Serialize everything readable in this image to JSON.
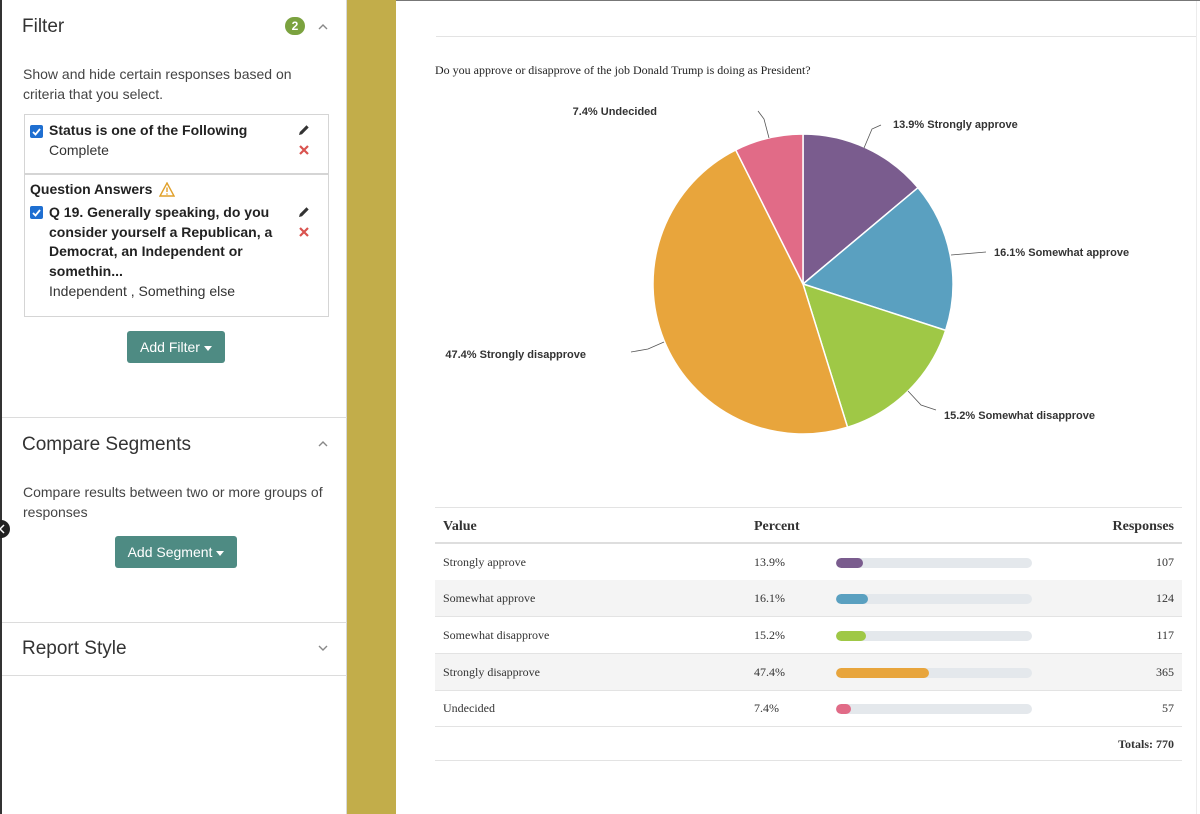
{
  "filter": {
    "title": "Filter",
    "count": "2",
    "description": "Show and hide certain responses based on criteria that you select.",
    "status_condition": {
      "title": "Status is one of the Following",
      "value": "Complete"
    },
    "question_group_title": "Question Answers",
    "question_condition": {
      "title_lines": [
        "Q 19. Generally speaking, do you",
        "consider yourself a Republican, a",
        "Democrat, an Independent or",
        "somethin..."
      ],
      "value": "Independent , Something else"
    },
    "add_filter_label": "Add Filter"
  },
  "compare": {
    "title": "Compare Segments",
    "description": "Compare results between two or more groups of responses",
    "add_segment_label": "Add Segment"
  },
  "report_style": {
    "title": "Report Style"
  },
  "report": {
    "question": "Do you approve or disapprove of the job Donald Trump is doing as President?",
    "table_headers": {
      "value": "Value",
      "percent": "Percent",
      "responses": "Responses"
    },
    "totals_label": "Totals: 770"
  },
  "chart_data": {
    "type": "pie",
    "title": "Do you approve or disapprove of the job Donald Trump is doing as President?",
    "categories": [
      "Strongly approve",
      "Somewhat approve",
      "Somewhat disapprove",
      "Strongly disapprove",
      "Undecided"
    ],
    "values": [
      13.9,
      16.1,
      15.2,
      47.4,
      7.4
    ],
    "percent_labels": [
      "13.9%",
      "16.1%",
      "15.2%",
      "47.4%",
      "7.4%"
    ],
    "responses": [
      "107",
      "124",
      "117",
      "365",
      "57"
    ],
    "slice_labels": [
      "13.9% Strongly approve",
      "16.1% Somewhat approve",
      "15.2% Somewhat disapprove",
      "47.4% Strongly disapprove",
      "7.4% Undecided"
    ],
    "colors": [
      "#7a5c8e",
      "#5aa0c0",
      "#9fc846",
      "#e8a53c",
      "#e16b87"
    ],
    "total": 770
  }
}
